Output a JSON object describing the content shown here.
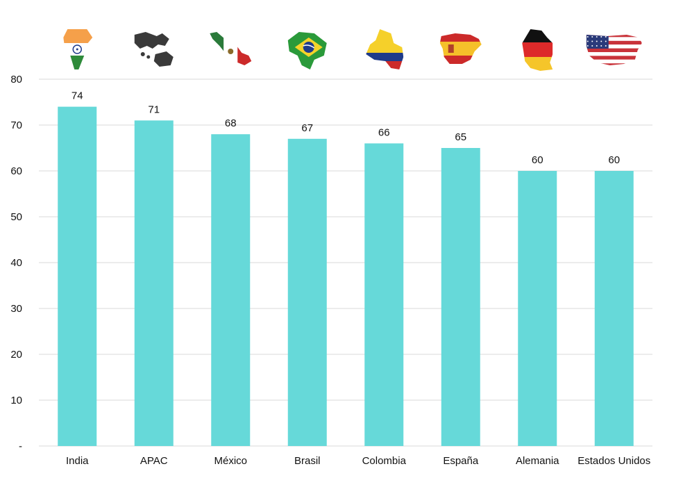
{
  "chart_data": {
    "type": "bar",
    "title": "",
    "xlabel": "",
    "ylabel": "",
    "categories": [
      "India",
      "APAC",
      "México",
      "Brasil",
      "Colombia",
      "España",
      "Alemania",
      "Estados Unidos"
    ],
    "values": [
      74,
      71,
      68,
      67,
      66,
      65,
      60,
      60
    ],
    "ylim": [
      0,
      80
    ],
    "yticks": [
      0,
      10,
      20,
      30,
      40,
      50,
      60,
      70,
      80
    ],
    "ytick_labels": [
      "-",
      "10",
      "20",
      "30",
      "40",
      "50",
      "60",
      "70",
      "80"
    ],
    "grid": true,
    "legend": "none",
    "data_labels": true,
    "bar_color": "#66d9d9",
    "grid_color": "#d9d9d9",
    "text_color": "#111111",
    "flag_icons": [
      "india-map-flag-icon",
      "apac-map-flag-icon",
      "mexico-map-flag-icon",
      "brazil-map-flag-icon",
      "colombia-map-flag-icon",
      "spain-map-flag-icon",
      "germany-map-flag-icon",
      "usa-map-flag-icon"
    ]
  }
}
